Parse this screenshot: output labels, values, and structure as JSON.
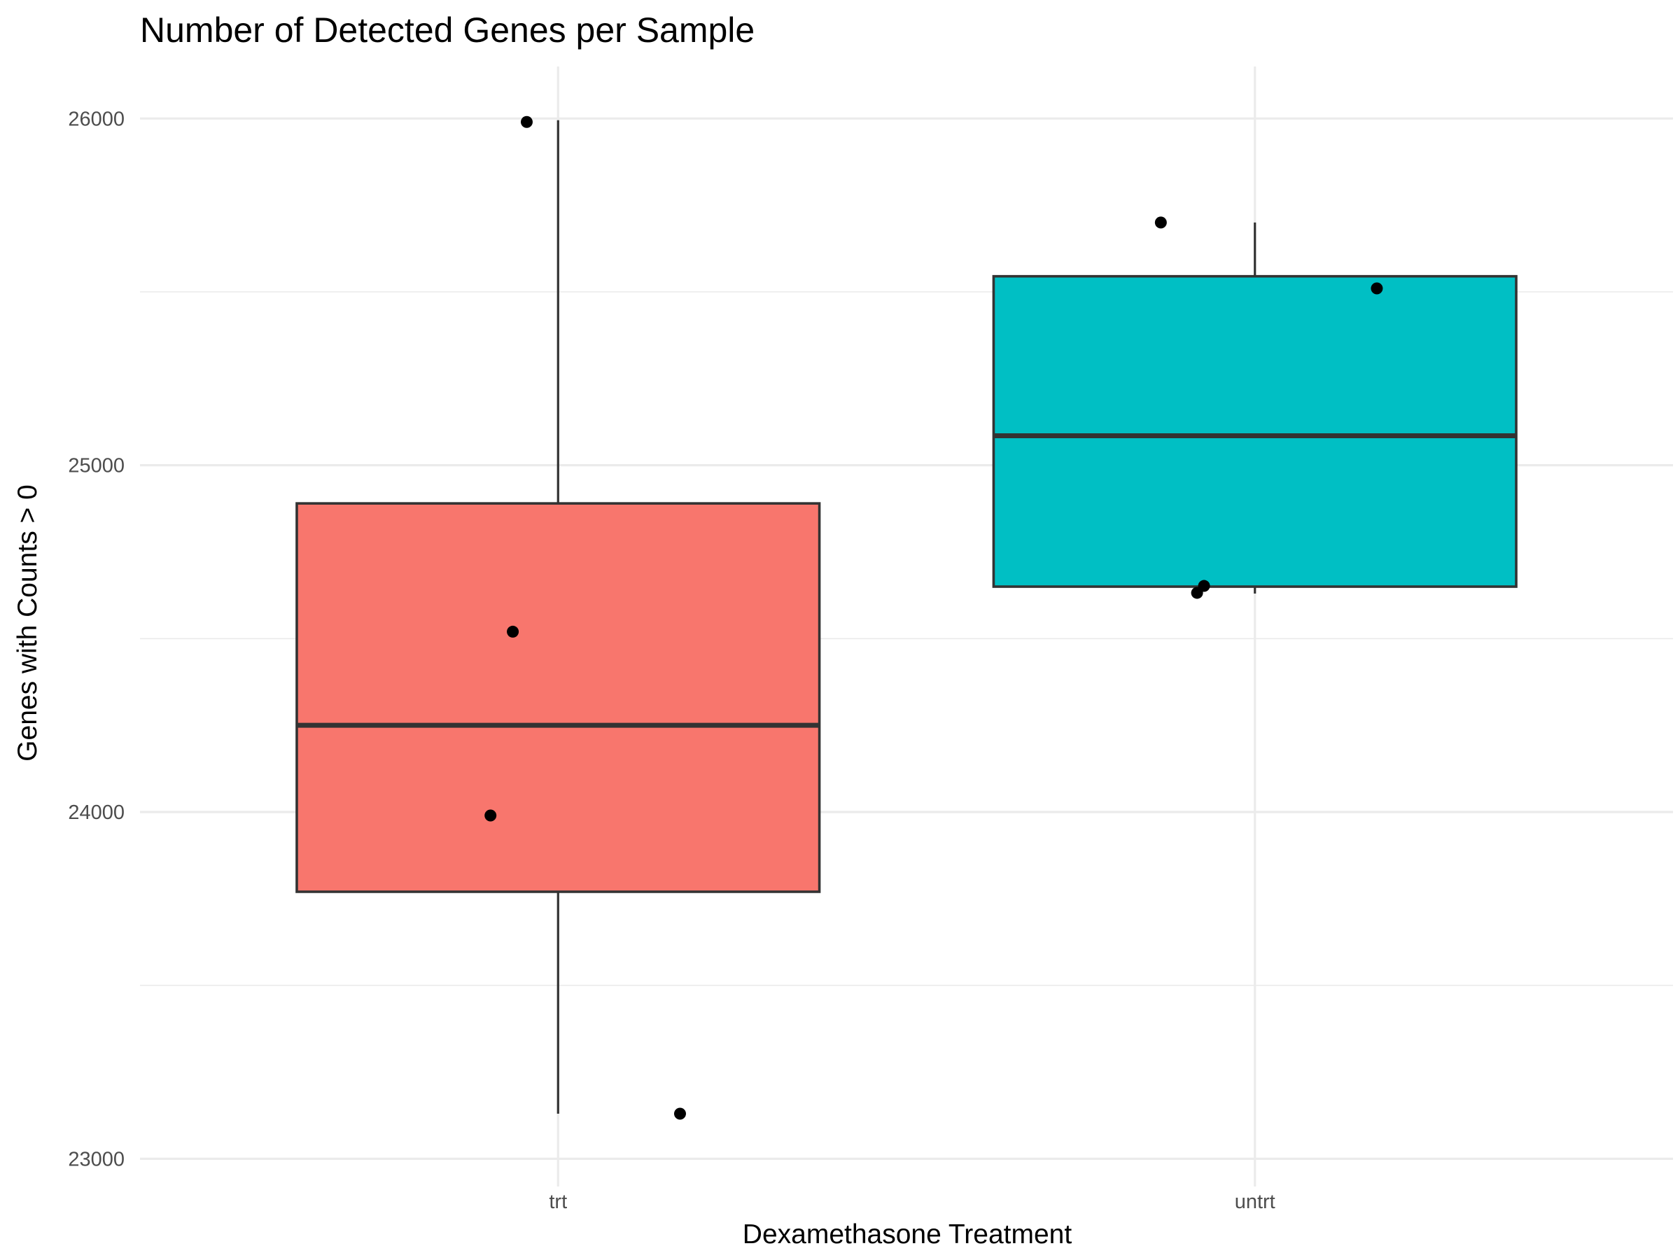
{
  "chart_data": {
    "type": "box",
    "title": "Number of Detected Genes per Sample",
    "xlabel": "Dexamethasone Treatment",
    "ylabel": "Genes with Counts > 0",
    "categories": [
      "trt",
      "untrt"
    ],
    "ylim": [
      22920,
      26150
    ],
    "yticks": [
      23000,
      24000,
      25000,
      26000
    ],
    "grid": true,
    "legend": "none",
    "boxes": [
      {
        "category": "trt",
        "fill": "#F8766D",
        "min": 23130,
        "q1": 23770,
        "median": 24250,
        "q3": 24890,
        "max": 25995
      },
      {
        "category": "untrt",
        "fill": "#00BFC4",
        "min": 24630,
        "q1": 24650,
        "median": 25085,
        "q3": 25545,
        "max": 25700
      }
    ],
    "points": [
      {
        "category": "trt",
        "jitter": -0.097,
        "y": 23990
      },
      {
        "category": "trt",
        "jitter": -0.065,
        "y": 24520
      },
      {
        "category": "trt",
        "jitter": -0.045,
        "y": 25990
      },
      {
        "category": "trt",
        "jitter": 0.175,
        "y": 23130
      },
      {
        "category": "untrt",
        "jitter": -0.135,
        "y": 25700
      },
      {
        "category": "untrt",
        "jitter": -0.083,
        "y": 24632
      },
      {
        "category": "untrt",
        "jitter": -0.073,
        "y": 24652
      },
      {
        "category": "untrt",
        "jitter": 0.175,
        "y": 25510
      }
    ],
    "point_color": "#000000",
    "outline_color": "#333333",
    "grid_color": "#ebebeb"
  }
}
